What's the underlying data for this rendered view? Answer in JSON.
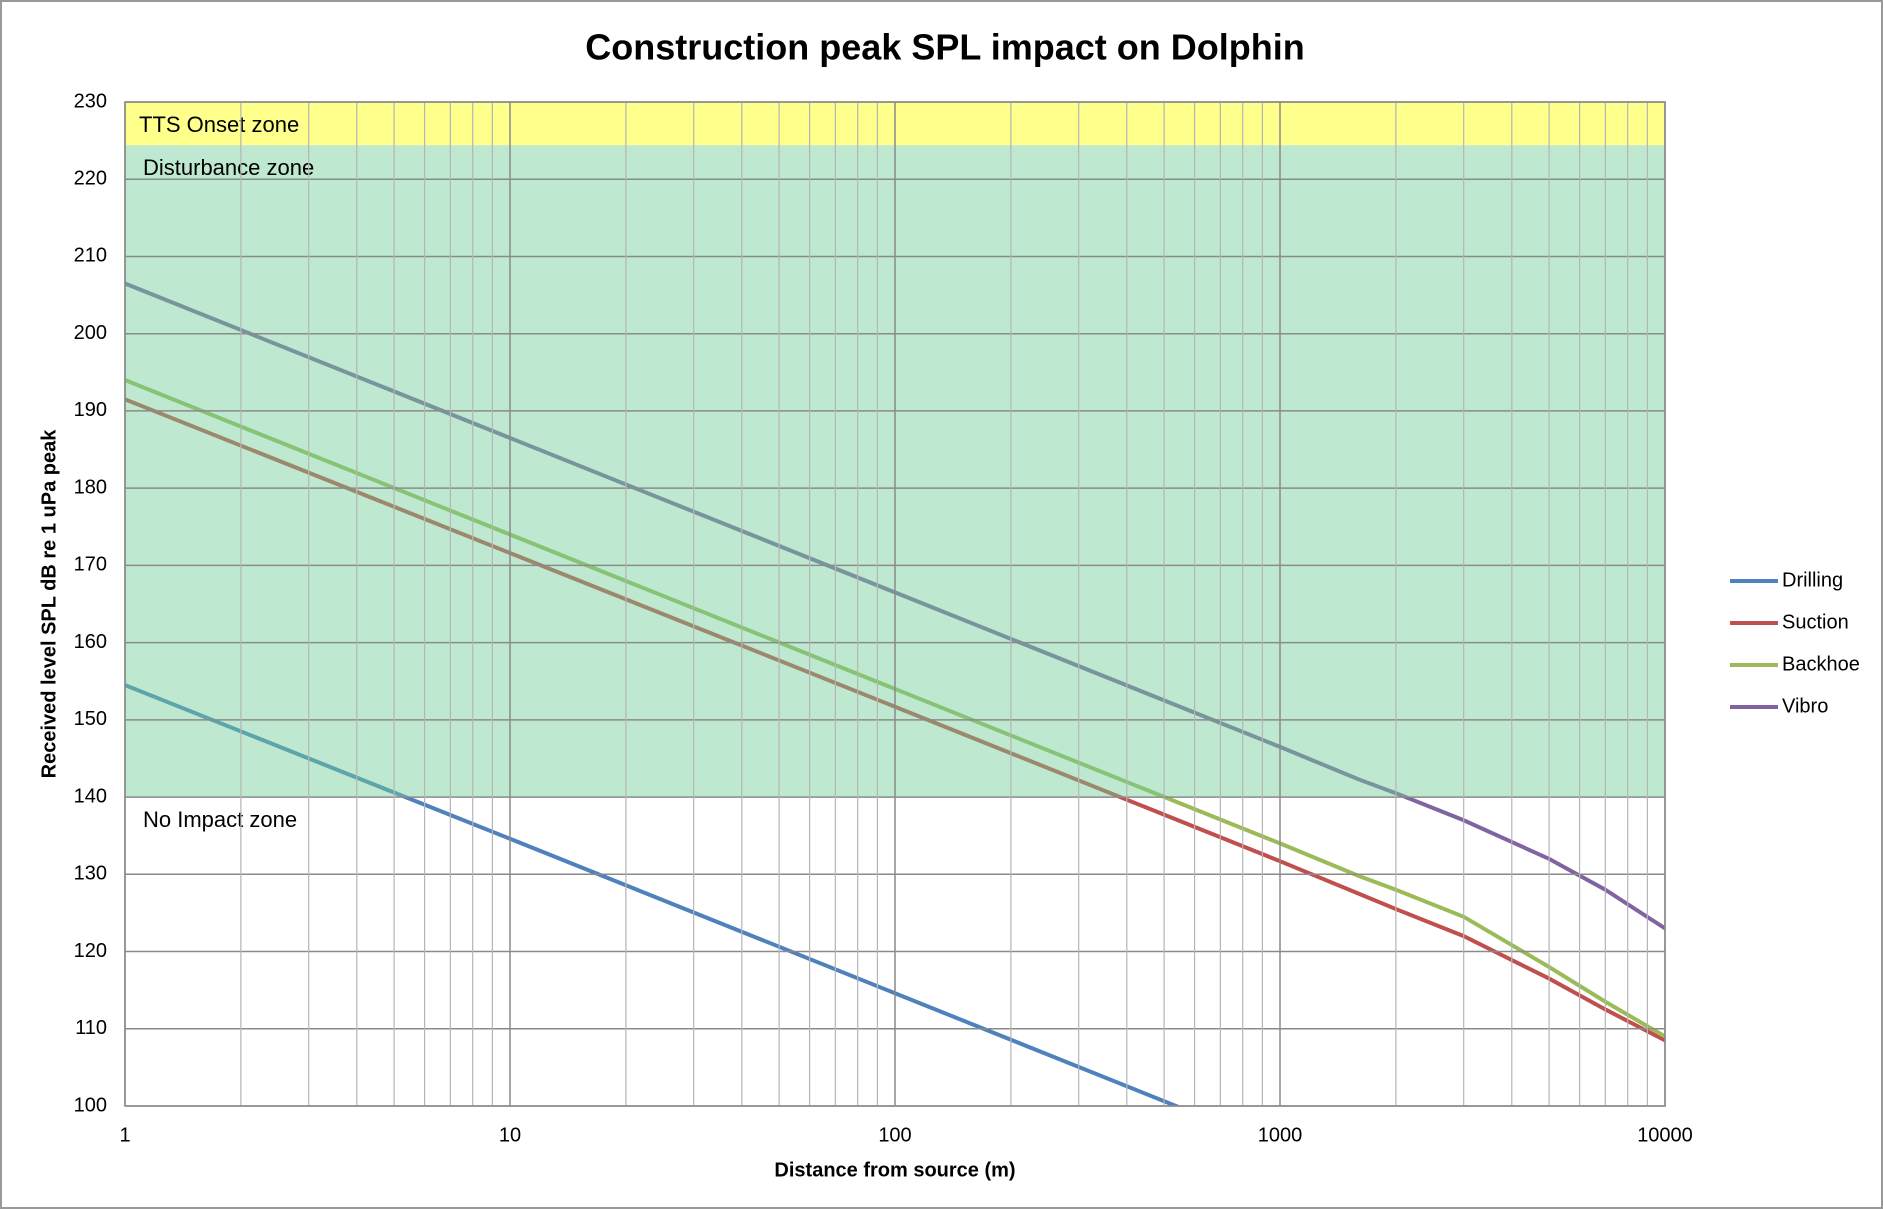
{
  "chart_data": {
    "type": "line",
    "title": "Construction peak SPL impact on Dolphin",
    "x_label": "Distance from source (m)",
    "y_label": "Received level SPL dB re 1 uPa peak",
    "x": [
      1,
      10,
      100,
      1000,
      1600,
      2000,
      3000,
      5000,
      7000,
      10000
    ],
    "series": [
      {
        "name": "Drilling",
        "color": "#4f81bd",
        "values": [
          154.5,
          134.6,
          114.6,
          94.6,
          null,
          null,
          null,
          null,
          null,
          null
        ]
      },
      {
        "name": "Suction",
        "color": "#c0504d",
        "values": [
          191.5,
          171.6,
          151.7,
          131.7,
          127.5,
          125.5,
          122,
          116.5,
          112.5,
          108.5
        ]
      },
      {
        "name": "Backhoe",
        "color": "#9bbb59",
        "values": [
          194,
          174,
          154,
          134,
          129.8,
          128,
          124.5,
          118,
          113.5,
          109
        ]
      },
      {
        "name": "Vibro",
        "color": "#8064a2",
        "values": [
          206.5,
          186.5,
          166.5,
          146.5,
          142.3,
          140.5,
          137,
          132,
          128,
          123
        ]
      }
    ],
    "zones": [
      {
        "label": "TTS Onset zone",
        "from": 224.4,
        "to": 230,
        "color": "#ffff00"
      },
      {
        "label": "Disturbance zone",
        "from": 140,
        "to": 224.4,
        "color": "#6fcf97"
      },
      {
        "label": "No Impact zone",
        "from": 100,
        "to": 140,
        "color": "#ffffff"
      }
    ],
    "xlim": [
      1,
      10000
    ],
    "xticks": [
      1,
      10,
      100,
      1000,
      10000
    ],
    "xscale": "log",
    "ylim": [
      100,
      230
    ],
    "yticks": [
      100,
      110,
      120,
      130,
      140,
      150,
      160,
      170,
      180,
      190,
      200,
      210,
      220,
      230
    ],
    "grid": true,
    "legend": "right"
  }
}
